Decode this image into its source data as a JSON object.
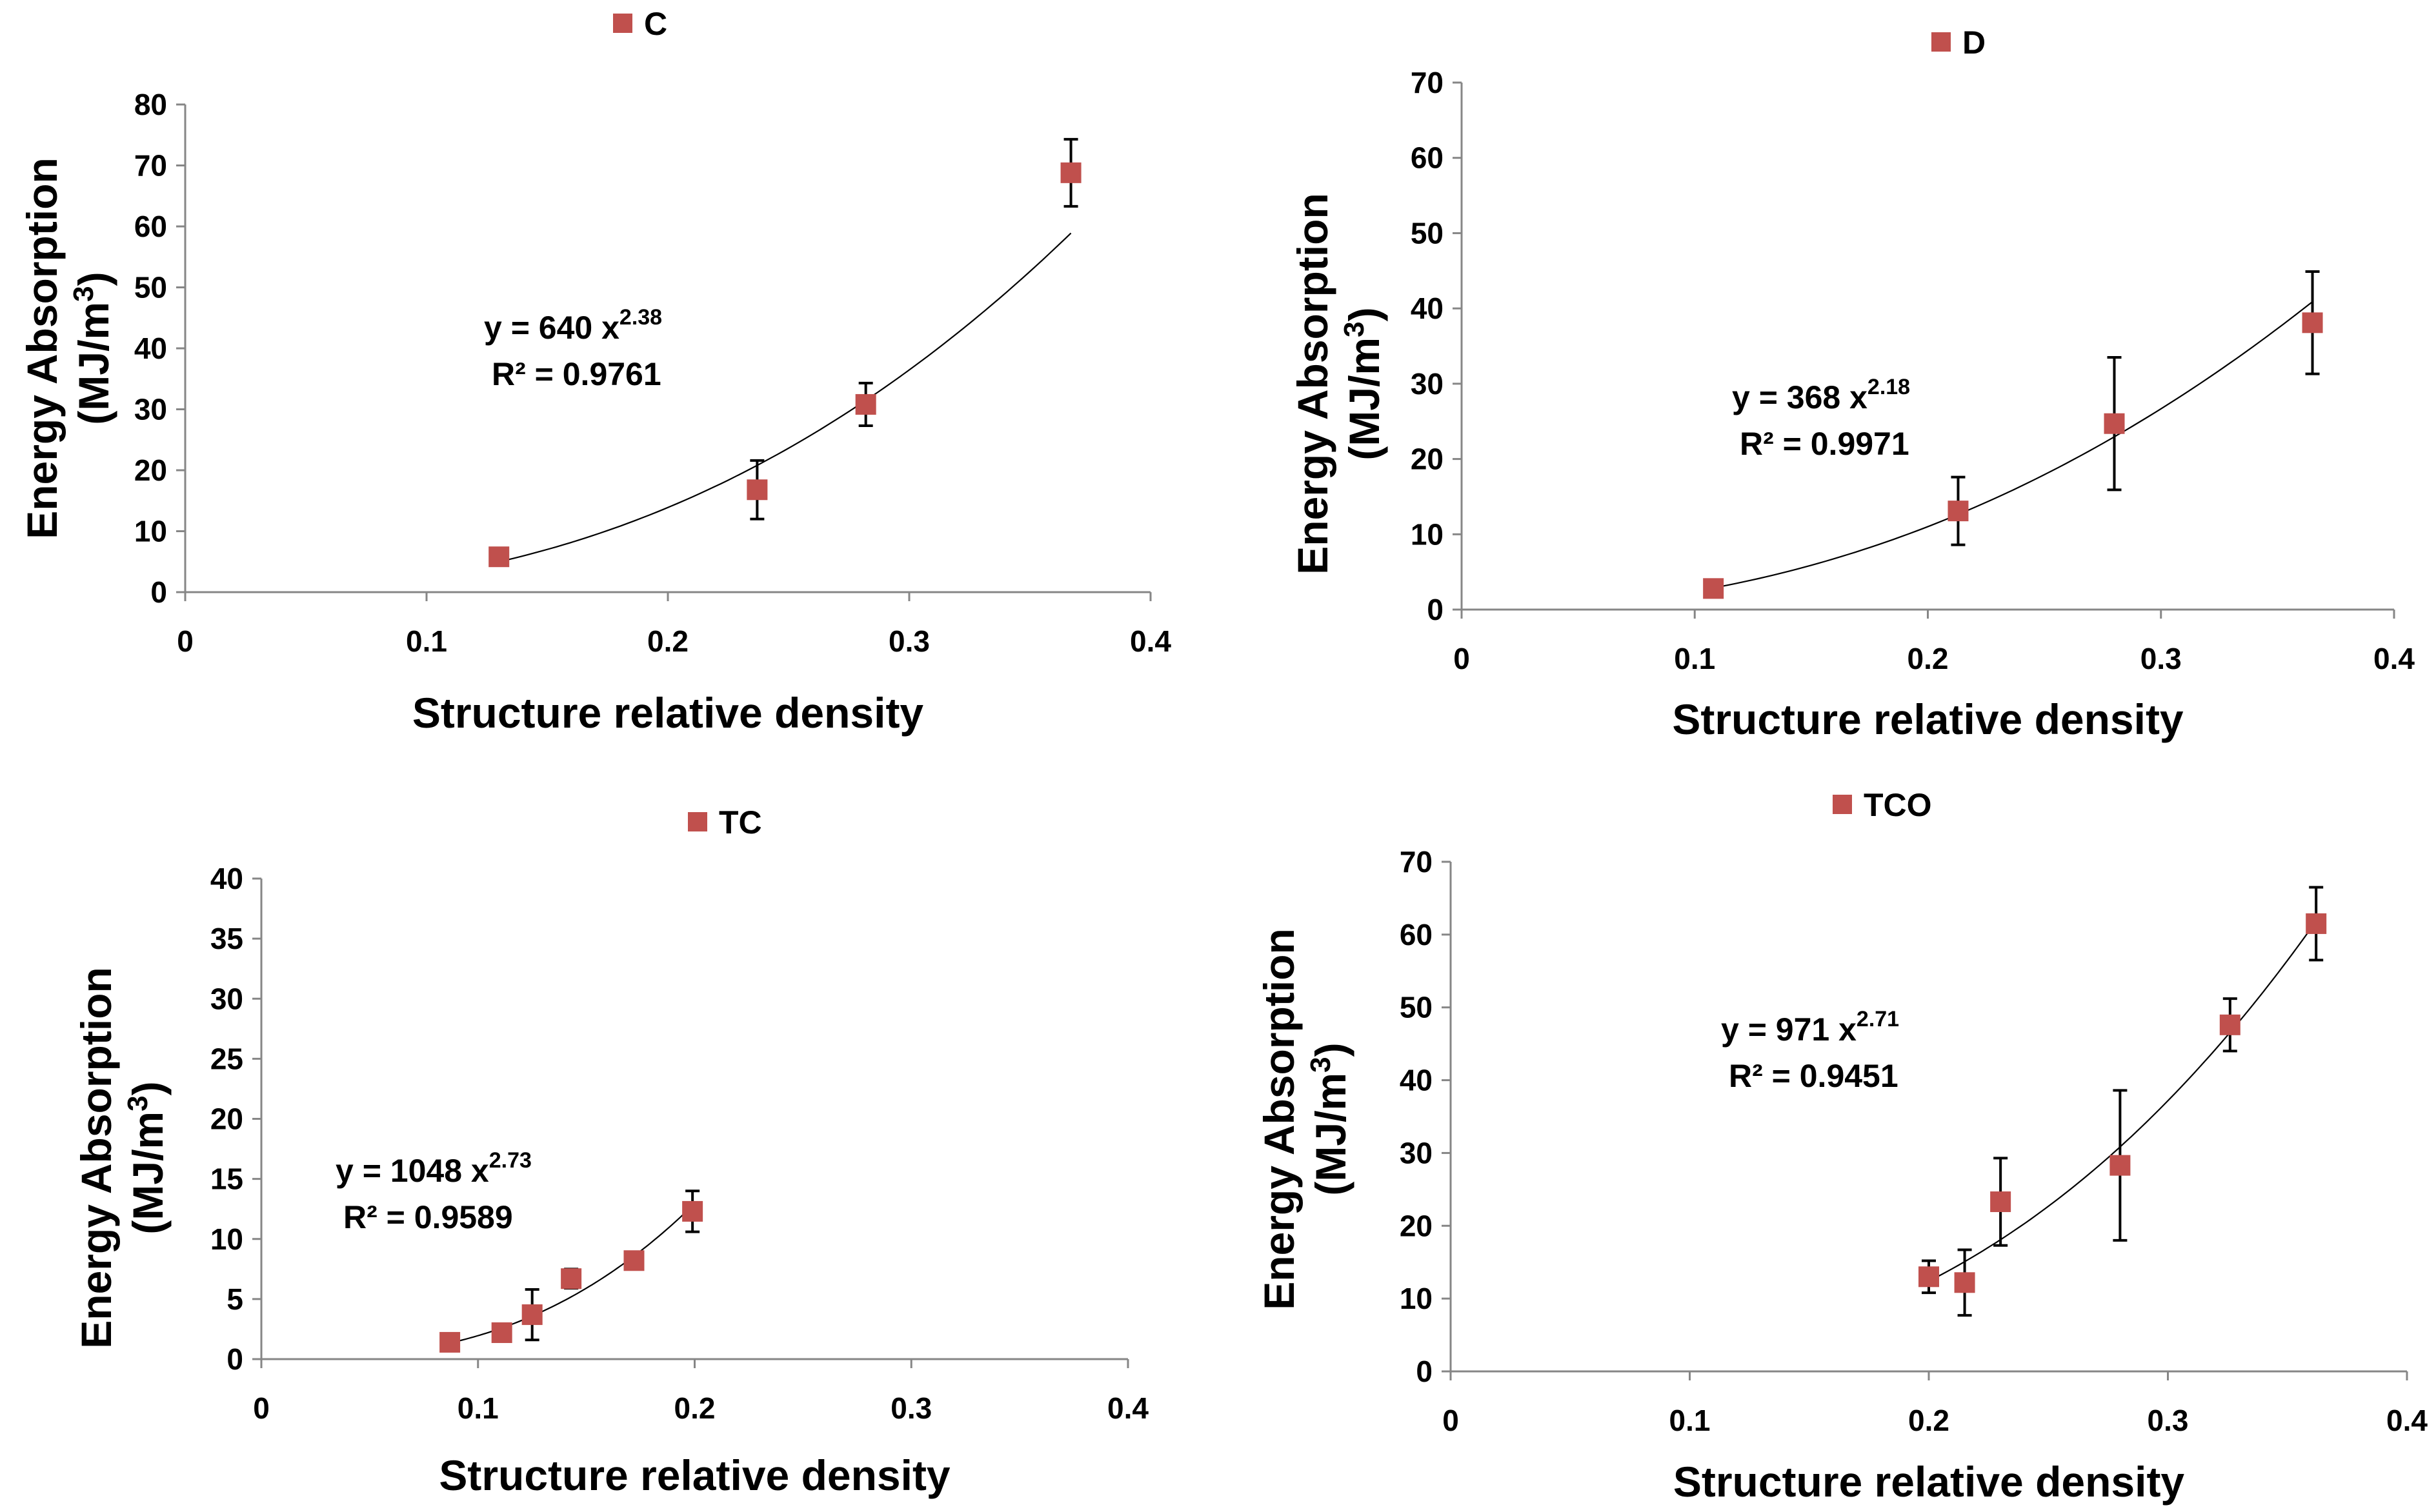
{
  "chart_data": [
    {
      "type": "scatter",
      "title": "",
      "legend": "C",
      "xlabel": "Structure relative density",
      "ylabel_line1": "Energy Absorption",
      "ylabel_line2_base": "(MJ/m",
      "ylabel_line2_sup": "3",
      "ylabel_line2_end": ")",
      "xlim": [
        0,
        0.4
      ],
      "ylim": [
        0,
        80
      ],
      "xticks": [
        0,
        0.1,
        0.2,
        0.3,
        0.4
      ],
      "xtick_labels": [
        "0",
        "0.1",
        "0.2",
        "0.3",
        "0.4"
      ],
      "yticks": [
        0,
        10,
        20,
        30,
        40,
        50,
        60,
        70,
        80
      ],
      "ytick_labels": [
        "0",
        "10",
        "20",
        "30",
        "40",
        "50",
        "60",
        "70",
        "80"
      ],
      "marker_color": "#C0504D",
      "series": [
        {
          "name": "C",
          "x": [
            0.13,
            0.237,
            0.282,
            0.367
          ],
          "y": [
            5.8,
            16.8,
            30.8,
            68.8
          ],
          "err": [
            0,
            4.8,
            3.5,
            5.5
          ]
        }
      ],
      "fit": {
        "a": 640,
        "b": 2.38,
        "x_range": [
          0.13,
          0.367
        ],
        "equation_line1": "y = 640  x",
        "equation_exp": "2.38",
        "equation_line2": "R² = 0.9761"
      }
    },
    {
      "type": "scatter",
      "title": "",
      "legend": "D",
      "xlabel": "Structure relative density",
      "ylabel_line1": "Energy Absorption",
      "ylabel_line2_base": "(MJ/m",
      "ylabel_line2_sup": "3",
      "ylabel_line2_end": ")",
      "xlim": [
        0,
        0.4
      ],
      "ylim": [
        0,
        70
      ],
      "xticks": [
        0,
        0.1,
        0.2,
        0.3,
        0.4
      ],
      "xtick_labels": [
        "0",
        "0.1",
        "0.2",
        "0.3",
        "0.4"
      ],
      "yticks": [
        0,
        10,
        20,
        30,
        40,
        50,
        60,
        70
      ],
      "ytick_labels": [
        "0",
        "10",
        "20",
        "30",
        "40",
        "50",
        "60",
        "70"
      ],
      "marker_color": "#C0504D",
      "series": [
        {
          "name": "D",
          "x": [
            0.108,
            0.213,
            0.28,
            0.365
          ],
          "y": [
            2.8,
            13.1,
            24.7,
            38.1
          ],
          "err": [
            0.6,
            4.5,
            8.8,
            6.8
          ]
        }
      ],
      "fit": {
        "a": 368,
        "b": 2.18,
        "x_range": [
          0.108,
          0.365
        ],
        "equation_line1": "y = 368  x",
        "equation_exp": "2.18",
        "equation_line2": "R² = 0.9971"
      }
    },
    {
      "type": "scatter",
      "title": "",
      "legend": "TC",
      "xlabel": "Structure relative density",
      "ylabel_line1": "Energy Absorption",
      "ylabel_line2_base": "(MJ/m",
      "ylabel_line2_sup": "3",
      "ylabel_line2_end": ")",
      "xlim": [
        0,
        0.4
      ],
      "ylim": [
        0,
        40
      ],
      "xticks": [
        0,
        0.1,
        0.2,
        0.3,
        0.4
      ],
      "xtick_labels": [
        "0",
        "0.1",
        "0.2",
        "0.3",
        "0.4"
      ],
      "yticks": [
        0,
        5,
        10,
        15,
        20,
        25,
        30,
        35,
        40
      ],
      "ytick_labels": [
        "0",
        "5",
        "10",
        "15",
        "20",
        "25",
        "30",
        "35",
        "40"
      ],
      "marker_color": "#C0504D",
      "series": [
        {
          "name": "TC",
          "x": [
            0.087,
            0.111,
            0.125,
            0.143,
            0.172,
            0.199
          ],
          "y": [
            1.4,
            2.2,
            3.7,
            6.7,
            8.2,
            12.3
          ],
          "err": [
            0.5,
            0.4,
            2.1,
            0.8,
            0.6,
            1.7
          ]
        }
      ],
      "fit": {
        "a": 1048,
        "b": 2.73,
        "x_range": [
          0.087,
          0.199
        ],
        "equation_line1": "y = 1048  x",
        "equation_exp": "2.73",
        "equation_line2": "R² = 0.9589"
      }
    },
    {
      "type": "scatter",
      "title": "",
      "legend": "TCO",
      "xlabel": "Structure relative density",
      "ylabel_line1": "Energy Absorption",
      "ylabel_line2_base": "(MJ/m",
      "ylabel_line2_sup": "3",
      "ylabel_line2_end": ")",
      "xlim": [
        0,
        0.4
      ],
      "ylim": [
        0,
        70
      ],
      "xticks": [
        0,
        0.1,
        0.2,
        0.3,
        0.4
      ],
      "xtick_labels": [
        "0",
        "0.1",
        "0.2",
        "0.3",
        "0.4"
      ],
      "yticks": [
        0,
        10,
        20,
        30,
        40,
        50,
        60,
        70
      ],
      "ytick_labels": [
        "0",
        "10",
        "20",
        "30",
        "40",
        "50",
        "60",
        "70"
      ],
      "marker_color": "#C0504D",
      "series": [
        {
          "name": "TCO",
          "x": [
            0.2,
            0.215,
            0.23,
            0.28,
            0.326,
            0.362
          ],
          "y": [
            13.0,
            12.2,
            23.3,
            28.3,
            47.6,
            61.5
          ],
          "err": [
            2.2,
            4.5,
            6.0,
            10.3,
            3.6,
            5.0
          ]
        }
      ],
      "fit": {
        "a": 971,
        "b": 2.71,
        "x_range": [
          0.2,
          0.362
        ],
        "equation_line1": "y = 971  x",
        "equation_exp": "2.71",
        "equation_line2": "R² = 0.9451"
      }
    }
  ]
}
